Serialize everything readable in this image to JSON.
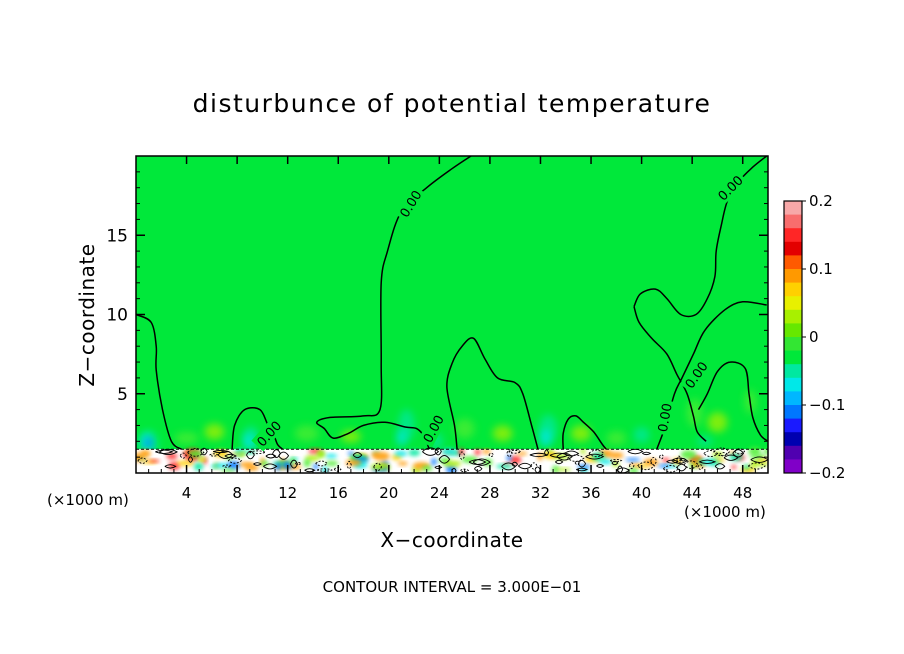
{
  "chart_data": {
    "type": "heatmap",
    "title": "disturbunce of potential temperature",
    "xlabel": "X−coordinate",
    "ylabel": "Z−coordinate",
    "x_unit_left": "(×1000 m)",
    "x_unit_right": "(×1000 m)",
    "footer": "CONTOUR INTERVAL = 3.000E−01",
    "xlim": [
      0,
      50
    ],
    "ylim": [
      0,
      20
    ],
    "x_ticks": [
      4,
      8,
      12,
      16,
      20,
      24,
      28,
      32,
      36,
      40,
      44,
      48
    ],
    "y_ticks": [
      5,
      10,
      15
    ],
    "contour_label": "0.00",
    "contour_label_positions": [
      {
        "x": 21.7,
        "y": 17.0
      },
      {
        "x": 47.0,
        "y": 18.0
      },
      {
        "x": 10.5,
        "y": 2.5
      },
      {
        "x": 23.5,
        "y": 2.8
      },
      {
        "x": 41.8,
        "y": 3.5
      },
      {
        "x": 44.3,
        "y": 6.2
      }
    ],
    "zero_contours": [
      [
        [
          0.0,
          10.0
        ],
        [
          1.2,
          9.5
        ],
        [
          1.6,
          8.0
        ],
        [
          1.6,
          6.5
        ],
        [
          2.1,
          4.0
        ],
        [
          2.8,
          2.0
        ],
        [
          3.6,
          1.5
        ]
      ],
      [
        [
          7.6,
          1.5
        ],
        [
          7.8,
          3.0
        ],
        [
          8.6,
          4.0
        ],
        [
          9.8,
          4.0
        ],
        [
          10.4,
          3.1
        ],
        [
          10.9,
          2.4
        ],
        [
          11.2,
          1.8
        ],
        [
          11.6,
          1.5
        ]
      ],
      [
        [
          23.2,
          1.5
        ],
        [
          22.8,
          2.3
        ],
        [
          22.2,
          2.8
        ],
        [
          21.3,
          2.9
        ],
        [
          19.7,
          3.2
        ],
        [
          18.0,
          3.0
        ],
        [
          16.8,
          2.5
        ],
        [
          15.6,
          2.2
        ],
        [
          14.9,
          2.8
        ],
        [
          14.3,
          3.2
        ],
        [
          15.3,
          3.5
        ],
        [
          18.0,
          3.6
        ],
        [
          19.3,
          4.0
        ],
        [
          19.4,
          7.0
        ],
        [
          19.4,
          12.0
        ],
        [
          19.9,
          14.0
        ],
        [
          21.0,
          16.5
        ],
        [
          23.0,
          18.0
        ],
        [
          25.0,
          19.2
        ],
        [
          26.5,
          20.0
        ]
      ],
      [
        [
          25.4,
          1.5
        ],
        [
          25.2,
          3.0
        ],
        [
          24.6,
          5.4
        ],
        [
          25.0,
          6.9
        ],
        [
          25.8,
          8.0
        ],
        [
          26.7,
          8.5
        ],
        [
          27.6,
          7.2
        ],
        [
          28.6,
          6.0
        ],
        [
          30.0,
          5.7
        ],
        [
          30.6,
          5.0
        ],
        [
          31.3,
          3.0
        ],
        [
          31.8,
          1.5
        ]
      ],
      [
        [
          33.8,
          1.5
        ],
        [
          33.8,
          2.5
        ],
        [
          34.2,
          3.4
        ],
        [
          34.8,
          3.6
        ],
        [
          35.4,
          3.2
        ],
        [
          36.2,
          2.6
        ],
        [
          36.9,
          1.8
        ],
        [
          37.2,
          1.5
        ]
      ],
      [
        [
          41.2,
          1.5
        ],
        [
          41.9,
          3.0
        ],
        [
          42.6,
          5.0
        ],
        [
          43.2,
          6.0
        ],
        [
          44.1,
          7.5
        ],
        [
          45.0,
          9.0
        ],
        [
          46.6,
          10.3
        ],
        [
          48.0,
          10.8
        ],
        [
          49.9,
          10.6
        ]
      ],
      [
        [
          39.4,
          10.5
        ],
        [
          39.9,
          11.3
        ],
        [
          41.1,
          11.6
        ],
        [
          42.0,
          11.0
        ],
        [
          43.1,
          10.0
        ],
        [
          44.3,
          10.0
        ],
        [
          45.2,
          11.0
        ],
        [
          45.8,
          12.4
        ],
        [
          45.9,
          14.0
        ],
        [
          46.3,
          15.6
        ],
        [
          46.8,
          17.2
        ],
        [
          47.7,
          18.4
        ],
        [
          48.8,
          19.3
        ],
        [
          49.9,
          20.0
        ]
      ],
      [
        [
          39.4,
          10.5
        ],
        [
          39.8,
          9.5
        ],
        [
          40.8,
          8.5
        ],
        [
          42.0,
          7.5
        ],
        [
          42.8,
          6.2
        ],
        [
          43.6,
          5.0
        ],
        [
          44.1,
          3.6
        ],
        [
          44.4,
          2.6
        ],
        [
          45.1,
          2.0
        ]
      ],
      [
        [
          44.5,
          4.0
        ],
        [
          45.2,
          5.0
        ],
        [
          46.0,
          6.4
        ],
        [
          47.0,
          7.0
        ],
        [
          48.2,
          6.6
        ],
        [
          48.5,
          5.0
        ],
        [
          48.8,
          3.5
        ],
        [
          49.4,
          2.4
        ],
        [
          50.0,
          2.0
        ]
      ]
    ],
    "colorbar": {
      "min": -0.2,
      "max": 0.2,
      "tick_labels": [
        "0.2",
        "0.1",
        "0",
        "−0.1",
        "−0.2"
      ],
      "tick_values": [
        0.2,
        0.1,
        0,
        -0.1,
        -0.2
      ],
      "colors_top_to_bottom": [
        "#f7a8a8",
        "#f86d6d",
        "#ff2626",
        "#e30000",
        "#ff5a00",
        "#ff9900",
        "#ffd000",
        "#e8f000",
        "#a8f000",
        "#66e800",
        "#33e633",
        "#00e83a",
        "#00e8a0",
        "#00e8e8",
        "#00b7ff",
        "#0077ff",
        "#1a1aff",
        "#0000b0",
        "#5000b0",
        "#8000c8"
      ]
    },
    "field_colors": {
      "background": "#00e83a",
      "light_green": "#4dee33",
      "yellow_green": "#a8f000",
      "cyan_green": "#00e8a0",
      "cyan": "#00e8e8",
      "blue": "#0077ff",
      "orange": "#ff9900",
      "red": "#ff2626"
    }
  }
}
